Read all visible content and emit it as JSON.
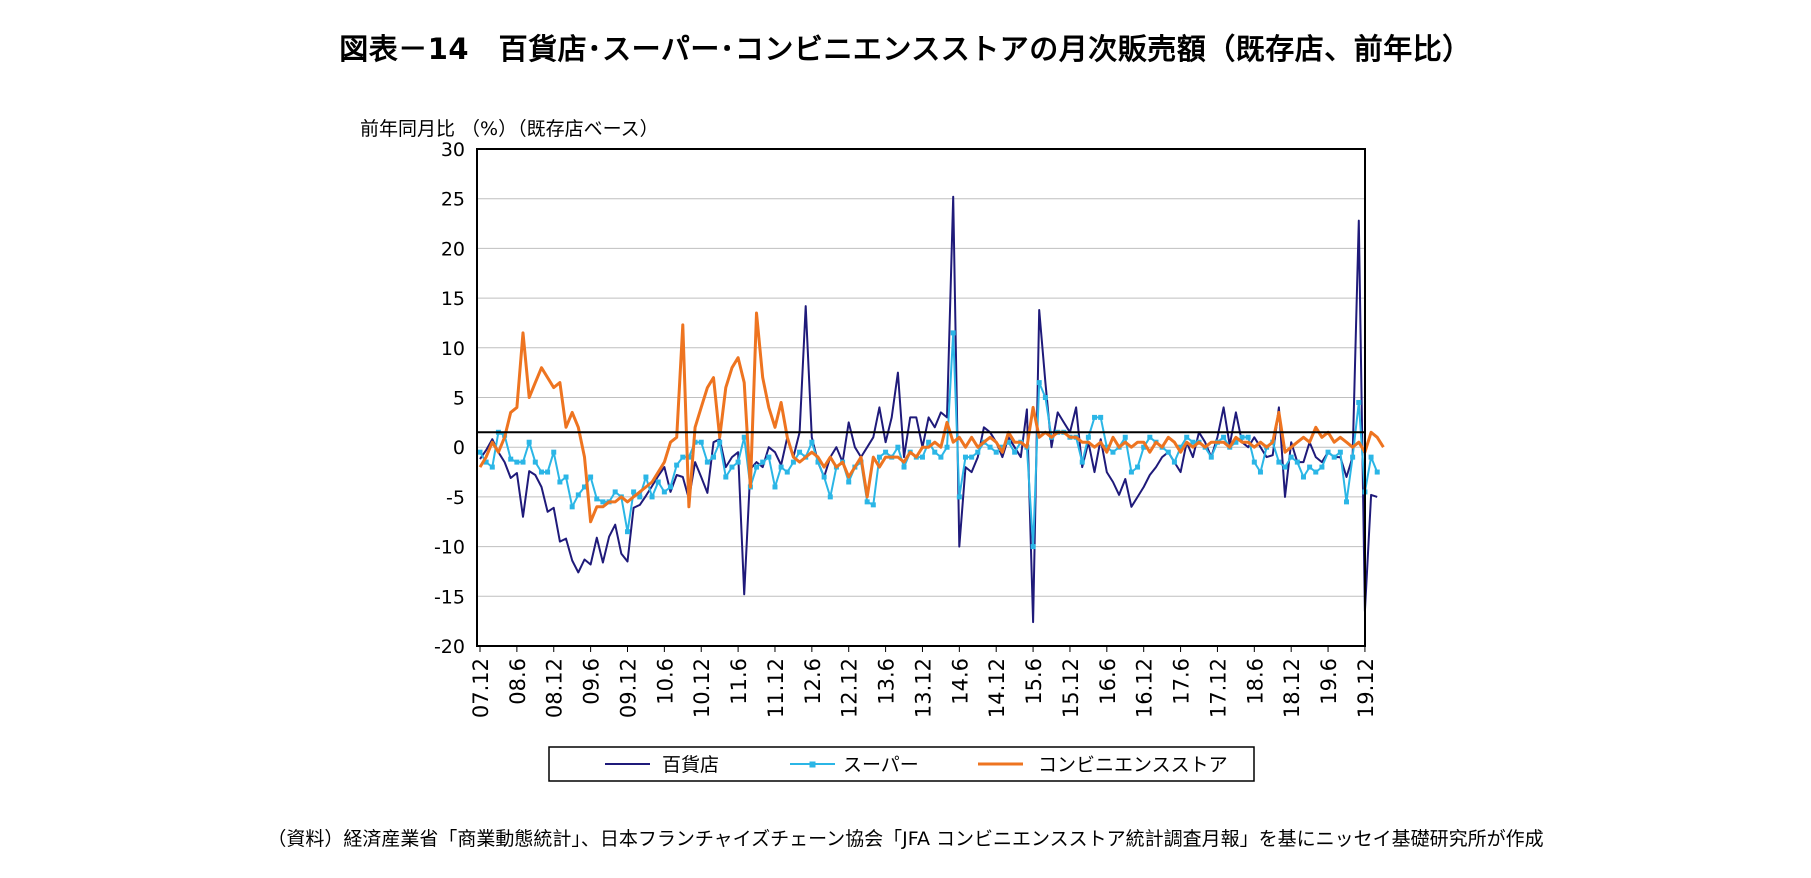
{
  "title": "図表－14　百貨店･スーパー･コンビニエンスストアの月次販売額（既存店、前年比）",
  "source": "（資料）経済産業省「商業動態統計」、日本フランチャイズチェーン協会「JFA コンビニエンスストア統計調査月報」を基にニッセイ基礎研究所が作成",
  "chart_data": {
    "type": "line",
    "ylabel": "前年同月比 （%）（既存店ベース）",
    "xlabel": "",
    "ylim": [
      -20,
      30
    ],
    "yticks": [
      -20,
      -15,
      -10,
      -5,
      0,
      5,
      10,
      15,
      20,
      25,
      30
    ],
    "reference_line": 1.5,
    "x_start": "2007.12",
    "n_months": 145,
    "xtick_labels": [
      "07.12",
      "08.6",
      "08.12",
      "09.6",
      "09.12",
      "10.6",
      "10.12",
      "11.6",
      "11.12",
      "12.6",
      "12.12",
      "13.6",
      "13.12",
      "14.6",
      "14.12",
      "15.6",
      "15.12",
      "16.6",
      "16.12",
      "17.6",
      "17.12",
      "18.6",
      "18.12",
      "19.6",
      "19.12"
    ],
    "legend": [
      "百貨店",
      "スーパー",
      "コンビニエンスストア"
    ],
    "legend_position": "bottom",
    "series": [
      {
        "name": "百貨店",
        "color": "#1f1a7a",
        "marker": "none",
        "width": 2,
        "values": [
          -1.2,
          -0.3,
          0.8,
          -0.5,
          -1.5,
          -3.1,
          -2.6,
          -7.0,
          -2.4,
          -2.8,
          -4.0,
          -6.5,
          -6.1,
          -9.5,
          -9.2,
          -11.4,
          -12.6,
          -11.3,
          -11.8,
          -9.1,
          -11.6,
          -9.0,
          -7.8,
          -10.7,
          -11.5,
          -6.1,
          -5.8,
          -4.9,
          -3.9,
          -2.9,
          -2.0,
          -4.5,
          -2.8,
          -3.0,
          -5.2,
          -1.5,
          -3.0,
          -4.6,
          0.5,
          0.8,
          -2.0,
          -1.0,
          -0.5,
          -14.8,
          -2.2,
          -1.5,
          -2.0,
          0.0,
          -0.5,
          -1.8,
          1.0,
          -1.0,
          1.5,
          14.2,
          1.0,
          -1.5,
          -3.0,
          -1.0,
          0.0,
          -1.5,
          2.5,
          0.0,
          -1.0,
          0.0,
          1.0,
          4.0,
          0.5,
          3.0,
          7.5,
          -1.0,
          3.0,
          3.0,
          0.0,
          3.0,
          2.0,
          3.5,
          3.0,
          25.2,
          -10.0,
          -2.0,
          -2.5,
          -1.0,
          2.0,
          1.5,
          0.5,
          -1.0,
          1.0,
          0.0,
          -1.0,
          3.8,
          -17.6,
          13.8,
          6.5,
          0.0,
          3.5,
          2.5,
          1.5,
          4.0,
          -2.0,
          0.5,
          -2.5,
          0.8,
          -2.5,
          -3.5,
          -4.8,
          -3.2,
          -6.0,
          -5.0,
          -4.0,
          -2.8,
          -2.0,
          -1.0,
          -0.5,
          -1.5,
          -2.5,
          0.5,
          -1.0,
          1.5,
          0.5,
          -1.0,
          1.0,
          4.0,
          0.2,
          3.5,
          0.5,
          0.0,
          1.0,
          0.0,
          -1.0,
          -0.8,
          4.0,
          -5.0,
          0.5,
          -1.5,
          -1.5,
          0.5,
          -1.0,
          -1.5,
          -0.5,
          -1.0,
          -1.0,
          -3.0,
          -1.0,
          22.8,
          -16.5,
          -4.8,
          -5.0
        ]
      },
      {
        "name": "スーパー",
        "color": "#2bb6e6",
        "marker": "square",
        "width": 2,
        "values": [
          -0.5,
          -1.5,
          -2.0,
          1.5,
          1.2,
          -1.2,
          -1.5,
          -1.5,
          0.5,
          -1.5,
          -2.5,
          -2.5,
          -0.5,
          -3.5,
          -3.0,
          -6.0,
          -4.8,
          -4.0,
          -3.0,
          -5.2,
          -5.5,
          -5.5,
          -4.5,
          -5.0,
          -8.5,
          -4.5,
          -5.0,
          -3.0,
          -5.0,
          -3.5,
          -4.5,
          -4.0,
          -1.8,
          -1.0,
          -1.0,
          0.5,
          0.5,
          -1.5,
          -1.0,
          0.5,
          -3.0,
          -2.0,
          -1.5,
          1.0,
          -4.0,
          -2.0,
          -1.5,
          -1.0,
          -4.0,
          -2.0,
          -2.5,
          -1.5,
          -0.5,
          -1.0,
          0.5,
          -1.5,
          -3.0,
          -5.0,
          -2.0,
          -1.5,
          -3.5,
          -2.0,
          -1.5,
          -5.5,
          -5.8,
          -1.0,
          -0.5,
          -1.0,
          0.0,
          -2.0,
          -0.5,
          -1.0,
          -1.0,
          0.5,
          -0.5,
          -1.0,
          0.0,
          11.5,
          -5.0,
          -1.0,
          -1.0,
          -0.5,
          0.5,
          0.0,
          -0.5,
          0.0,
          0.5,
          -0.5,
          0.5,
          0.0,
          -10.0,
          6.5,
          5.0,
          1.0,
          1.5,
          1.5,
          1.0,
          1.0,
          -1.5,
          1.0,
          3.0,
          3.0,
          0.0,
          -0.5,
          0.0,
          1.0,
          -2.5,
          -2.0,
          0.0,
          1.0,
          0.5,
          0.0,
          -0.5,
          -1.5,
          0.0,
          1.0,
          0.5,
          0.5,
          0.0,
          -1.0,
          0.5,
          1.0,
          0.0,
          0.5,
          1.0,
          1.0,
          -1.5,
          -2.5,
          0.0,
          0.5,
          -1.5,
          -2.0,
          -1.0,
          -1.5,
          -3.0,
          -2.0,
          -2.5,
          -2.0,
          -0.5,
          -1.0,
          -0.5,
          -5.5,
          -1.0,
          4.5,
          -4.5,
          -1.0,
          -2.5
        ]
      },
      {
        "name": "コンビニエンスストア",
        "color": "#ee7420",
        "marker": "none",
        "width": 3,
        "values": [
          -2.0,
          -1.0,
          0.5,
          -0.5,
          1.0,
          3.5,
          4.0,
          11.5,
          5.0,
          6.5,
          8.0,
          7.0,
          6.0,
          6.5,
          2.0,
          3.5,
          2.0,
          -1.0,
          -7.5,
          -6.0,
          -6.0,
          -5.5,
          -5.5,
          -5.0,
          -5.5,
          -5.0,
          -4.5,
          -4.0,
          -3.5,
          -2.5,
          -1.5,
          0.5,
          1.0,
          12.3,
          -6.0,
          2.0,
          4.0,
          6.0,
          7.0,
          1.0,
          6.0,
          8.0,
          9.0,
          6.5,
          -4.0,
          13.5,
          7.0,
          4.0,
          2.0,
          4.5,
          1.0,
          -1.0,
          -1.5,
          -1.0,
          -0.5,
          -1.0,
          -2.0,
          -1.0,
          -2.0,
          -1.5,
          -3.0,
          -2.0,
          -1.0,
          -5.0,
          -1.0,
          -2.0,
          -1.0,
          -1.0,
          -1.0,
          -1.5,
          -0.5,
          -1.0,
          0.0,
          0.0,
          0.5,
          0.0,
          2.5,
          0.5,
          1.0,
          0.0,
          1.0,
          0.0,
          0.5,
          1.0,
          0.5,
          -0.5,
          1.5,
          0.5,
          0.5,
          0.0,
          4.0,
          1.0,
          1.5,
          1.0,
          1.5,
          1.5,
          1.0,
          1.0,
          0.5,
          0.5,
          0.0,
          0.5,
          -0.5,
          1.0,
          0.0,
          0.5,
          0.0,
          0.5,
          0.5,
          -0.5,
          0.5,
          0.0,
          1.0,
          0.5,
          -0.5,
          0.5,
          0.0,
          0.5,
          0.0,
          0.5,
          0.5,
          0.5,
          0.0,
          1.0,
          0.5,
          0.5,
          0.0,
          0.5,
          0.0,
          0.5,
          3.5,
          -0.5,
          0.0,
          0.5,
          1.0,
          0.5,
          2.0,
          1.0,
          1.5,
          0.5,
          1.0,
          0.5,
          0.0,
          0.5,
          -0.5,
          1.5,
          1.0,
          0.0
        ]
      }
    ]
  }
}
